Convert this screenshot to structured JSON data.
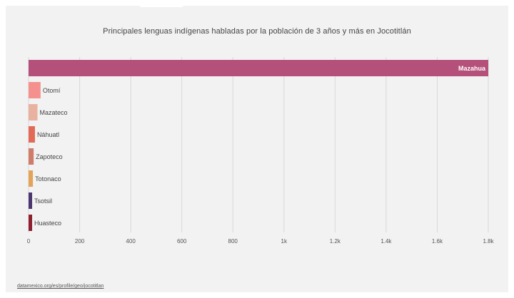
{
  "chart_data": {
    "type": "bar",
    "orientation": "horizontal",
    "title": "Principales lenguas indígenas habladas por la población de 3 años y más en Jocotitlán",
    "xlabel": "",
    "ylabel": "",
    "xlim": [
      0,
      1800
    ],
    "grid": true,
    "categories": [
      "Mazahua",
      "Otomí",
      "Mazateco",
      "Náhuatl",
      "Zapoteco",
      "Totonaco",
      "Tsotsil",
      "Huasteco"
    ],
    "values": [
      1800,
      47,
      35,
      25,
      20,
      17,
      14,
      14
    ],
    "colors": [
      "#b5507a",
      "#f4918e",
      "#e9b2a0",
      "#e36a56",
      "#cf7d6b",
      "#e4a35a",
      "#4b3670",
      "#8e2030"
    ],
    "tick_labels": [
      "0",
      "200",
      "400",
      "600",
      "800",
      "1k",
      "1.2k",
      "1.4k",
      "1.6k",
      "1.8k"
    ]
  },
  "source_link": "datamexico.org/es/profile/geo/jocotitlan"
}
